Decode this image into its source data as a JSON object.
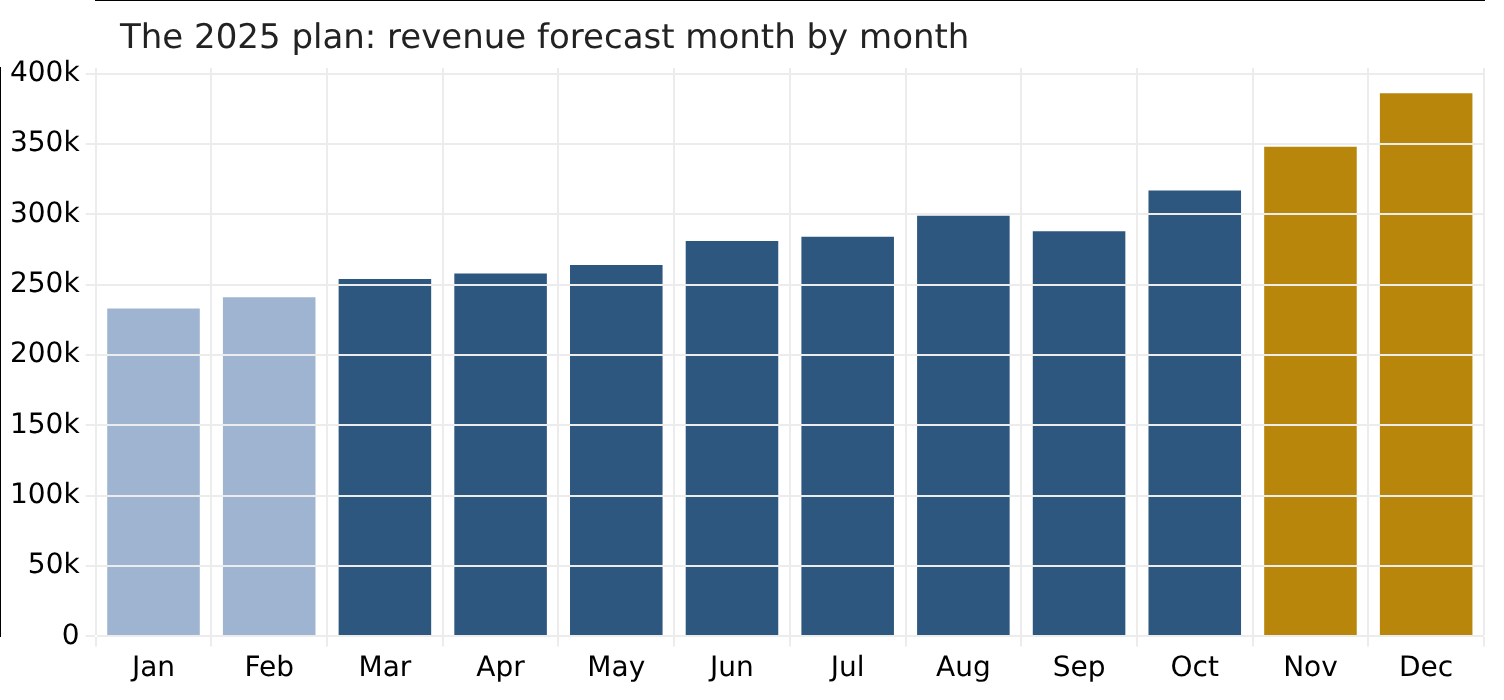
{
  "chart_data": {
    "type": "bar",
    "title": "The 2025 plan: revenue forecast month by month",
    "categories": [
      "Jan",
      "Feb",
      "Mar",
      "Apr",
      "May",
      "Jun",
      "Jul",
      "Aug",
      "Sep",
      "Oct",
      "Nov",
      "Dec"
    ],
    "values": [
      233000,
      241000,
      254000,
      258000,
      264000,
      281000,
      284000,
      299000,
      288000,
      317000,
      348000,
      386000
    ],
    "colors": [
      "#9fb4d0",
      "#9fb4d0",
      "#2e577f",
      "#2e577f",
      "#2e577f",
      "#2e577f",
      "#2e577f",
      "#2e577f",
      "#2e577f",
      "#2e577f",
      "#b8860b",
      "#b8860b"
    ],
    "ylim": [
      0,
      404000
    ],
    "yticks": [
      {
        "value": 0,
        "label": "0"
      },
      {
        "value": 50000,
        "label": "50k"
      },
      {
        "value": 100000,
        "label": "100k"
      },
      {
        "value": 150000,
        "label": "150k"
      },
      {
        "value": 200000,
        "label": "200k"
      },
      {
        "value": 250000,
        "label": "250k"
      },
      {
        "value": 300000,
        "label": "300k"
      },
      {
        "value": 350000,
        "label": "350k"
      },
      {
        "value": 400000,
        "label": "400k"
      }
    ],
    "grid": true,
    "legend": false
  }
}
